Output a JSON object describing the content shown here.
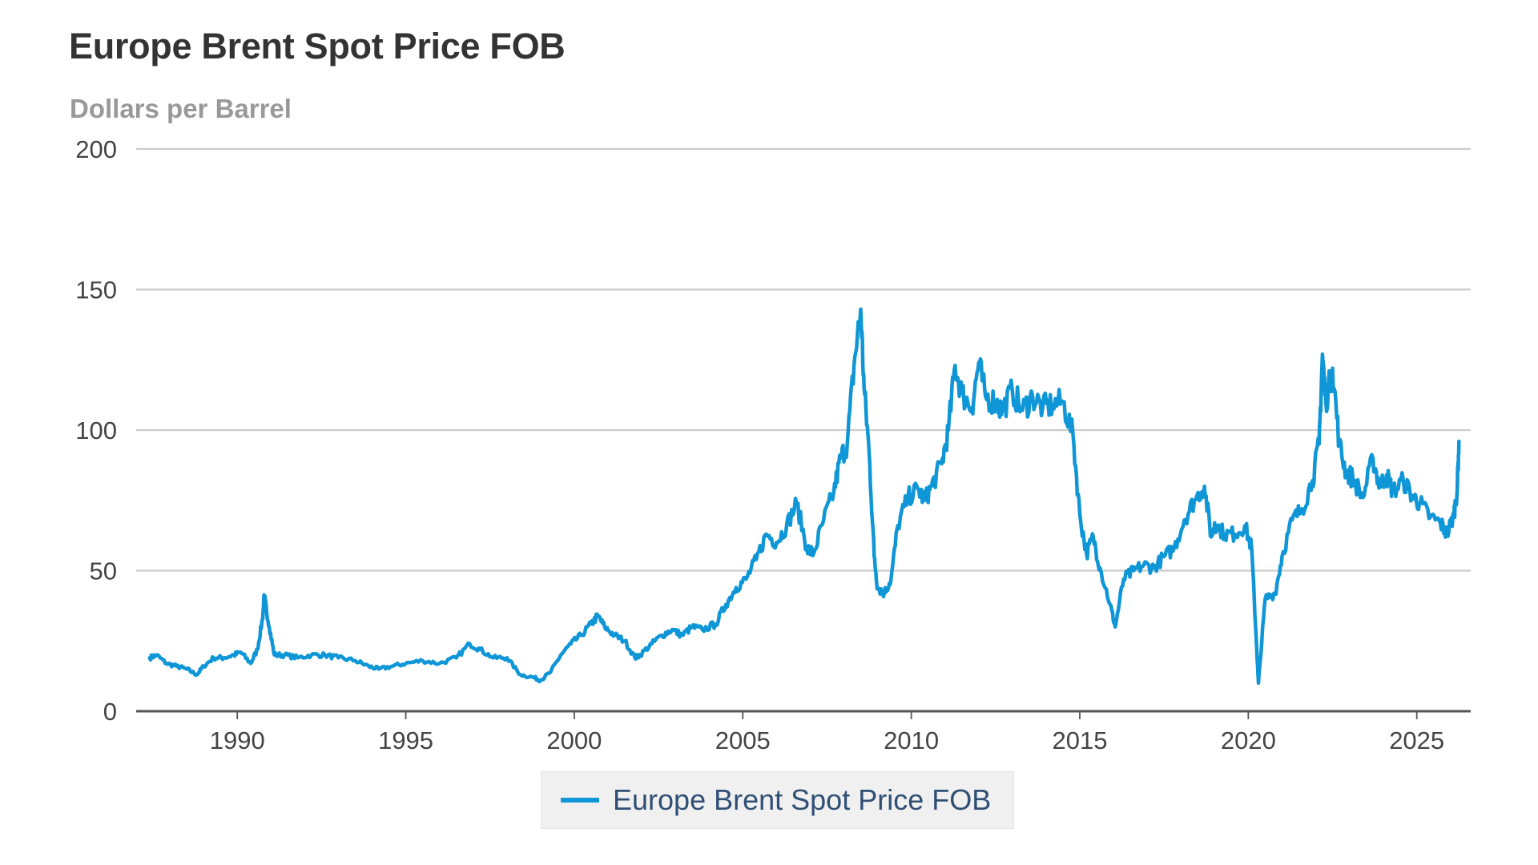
{
  "header": {
    "title": "Europe Brent Spot Price FOB",
    "subtitle": "Dollars per Barrel"
  },
  "legend": {
    "items": [
      {
        "label": "Europe Brent Spot Price FOB",
        "color": "#0f96d6"
      }
    ]
  },
  "chart_data": {
    "type": "line",
    "title": "Europe Brent Spot Price FOB",
    "ylabel": "Dollars per Barrel",
    "xlabel": "",
    "xlim": [
      1987.0,
      2026.6
    ],
    "ylim": [
      0,
      200
    ],
    "y_ticks": [
      0,
      50,
      100,
      150,
      200
    ],
    "x_ticks": [
      1990,
      1995,
      2000,
      2005,
      2010,
      2015,
      2020,
      2025
    ],
    "x_tick_labels": [
      "1990",
      "1995",
      "2000",
      "2005",
      "2010",
      "2015",
      "2020",
      "2025"
    ],
    "y_tick_labels": [
      "0",
      "50",
      "100",
      "150",
      "200"
    ],
    "grid": true,
    "legend_position": "bottom-center",
    "series": [
      {
        "name": "Europe Brent Spot Price FOB",
        "color": "#0f96d6",
        "x": [
          1987.4,
          1987.6,
          1987.9,
          1988.2,
          1988.5,
          1988.8,
          1989.0,
          1989.3,
          1989.6,
          1989.9,
          1990.1,
          1990.4,
          1990.6,
          1990.75,
          1990.8,
          1990.95,
          1991.1,
          1991.4,
          1991.8,
          1992.2,
          1992.6,
          1993.0,
          1993.5,
          1993.9,
          1994.2,
          1994.6,
          1995.0,
          1995.5,
          1996.0,
          1996.5,
          1996.9,
          1997.2,
          1997.6,
          1998.0,
          1998.4,
          1998.8,
          1999.0,
          1999.3,
          1999.6,
          1999.9,
          2000.2,
          2000.5,
          2000.7,
          2000.9,
          2001.2,
          2001.5,
          2001.8,
          2001.95,
          2002.3,
          2002.6,
          2002.9,
          2003.2,
          2003.5,
          2003.8,
          2004.2,
          2004.5,
          2004.8,
          2005.1,
          2005.4,
          2005.7,
          2006.0,
          2006.3,
          2006.6,
          2006.9,
          2007.1,
          2007.4,
          2007.7,
          2007.9,
          2008.1,
          2008.3,
          2008.5,
          2008.6,
          2008.75,
          2008.9,
          2009.0,
          2009.2,
          2009.4,
          2009.6,
          2009.9,
          2010.2,
          2010.4,
          2010.6,
          2010.9,
          2011.1,
          2011.3,
          2011.5,
          2011.8,
          2012.0,
          2012.2,
          2012.5,
          2012.7,
          2013.0,
          2013.3,
          2013.6,
          2013.9,
          2014.2,
          2014.5,
          2014.8,
          2015.0,
          2015.2,
          2015.4,
          2015.6,
          2015.9,
          2016.05,
          2016.3,
          2016.6,
          2016.9,
          2017.2,
          2017.5,
          2017.8,
          2018.1,
          2018.4,
          2018.7,
          2018.9,
          2019.0,
          2019.3,
          2019.6,
          2019.9,
          2020.1,
          2020.25,
          2020.3,
          2020.5,
          2020.8,
          2021.0,
          2021.3,
          2021.6,
          2021.9,
          2022.1,
          2022.2,
          2022.3,
          2022.5,
          2022.7,
          2022.9,
          2023.1,
          2023.4,
          2023.7,
          2023.9,
          2024.1,
          2024.3,
          2024.6,
          2024.9,
          2025.1,
          2025.4,
          2025.7,
          2025.9,
          2026.1,
          2026.2,
          2026.25
        ],
        "values": [
          19,
          20,
          17,
          16,
          15,
          13,
          16,
          19,
          19,
          20,
          21,
          17,
          22,
          33,
          41,
          30,
          20,
          20,
          19,
          20,
          20,
          19,
          18,
          16,
          15,
          16,
          17,
          18,
          17,
          19,
          24,
          22,
          19,
          19,
          13,
          12,
          11,
          14,
          20,
          24,
          27,
          31,
          34,
          30,
          27,
          25,
          19,
          20,
          24,
          27,
          29,
          27,
          30,
          29,
          31,
          38,
          44,
          47,
          54,
          63,
          60,
          66,
          74,
          58,
          56,
          68,
          78,
          90,
          95,
          123,
          143,
          115,
          92,
          55,
          44,
          42,
          47,
          66,
          76,
          79,
          75,
          80,
          88,
          100,
          123,
          113,
          108,
          124,
          112,
          110,
          107,
          114,
          107,
          112,
          108,
          109,
          110,
          98,
          70,
          56,
          62,
          51,
          38,
          30,
          47,
          50,
          52,
          51,
          55,
          58,
          68,
          75,
          80,
          62,
          67,
          63,
          63,
          66,
          58,
          22,
          10,
          40,
          42,
          55,
          68,
          72,
          82,
          95,
          127,
          110,
          122,
          95,
          85,
          83,
          76,
          90,
          80,
          84,
          78,
          82,
          76,
          74,
          69,
          67,
          63,
          70,
          79,
          96
        ]
      }
    ]
  }
}
